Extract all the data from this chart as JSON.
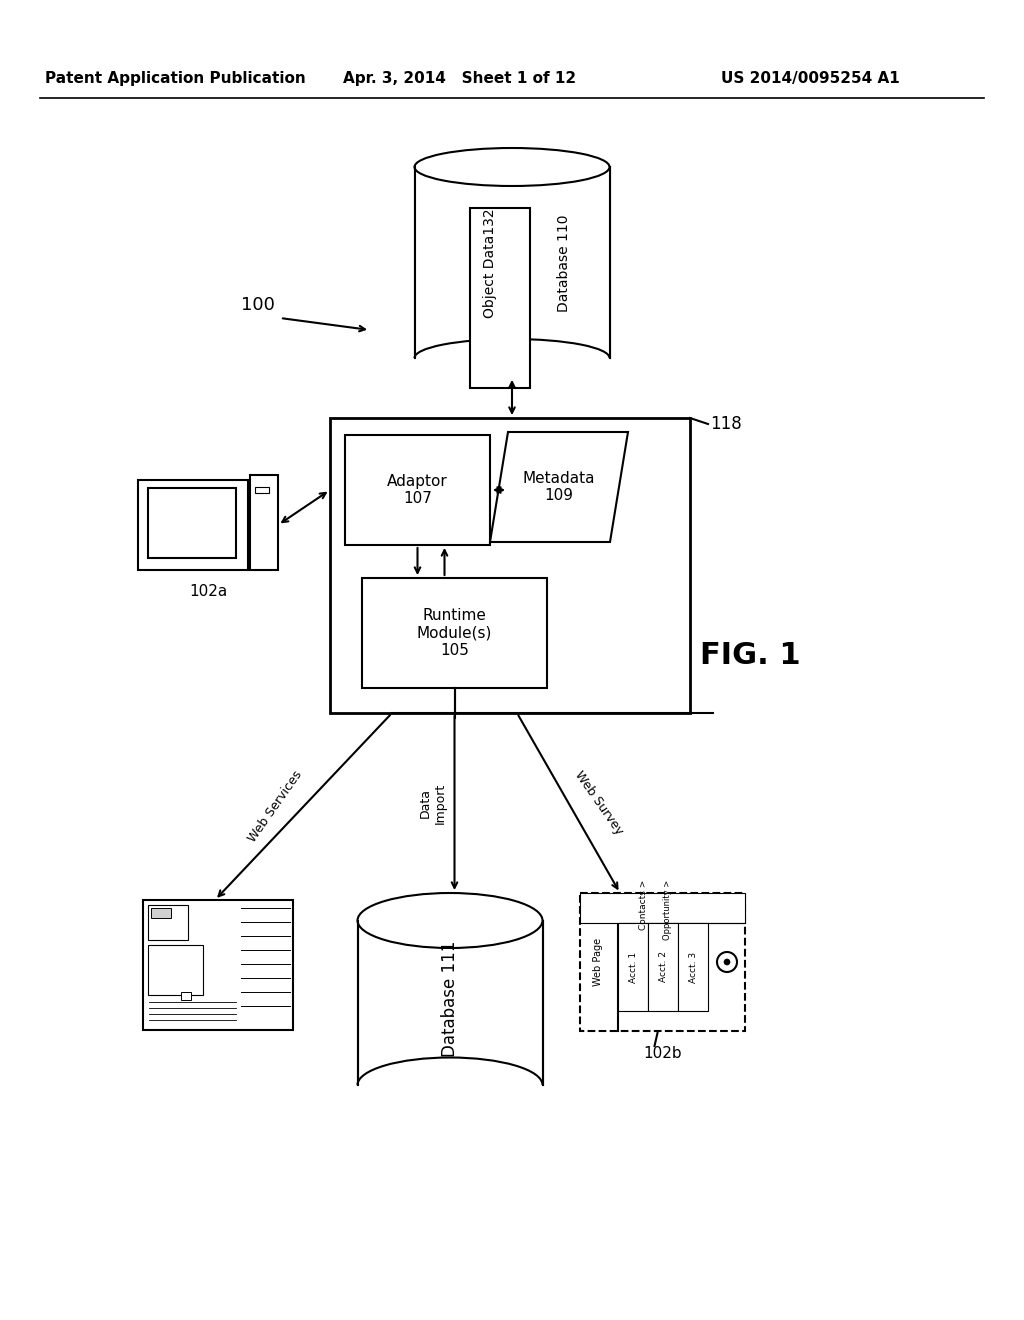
{
  "header_left": "Patent Application Publication",
  "header_center": "Apr. 3, 2014   Sheet 1 of 12",
  "header_right": "US 2014/0095254 A1",
  "fig_label": "FIG. 1",
  "label_100": "100",
  "label_118": "118",
  "label_102a": "102a",
  "label_102b": "102b",
  "label_db110": "Database 110",
  "label_objdata": "Object Data132",
  "label_db111": "Database 111",
  "label_adaptor": "Adaptor\n107",
  "label_metadata": "Metadata\n109",
  "label_runtime": "Runtime\nModule(s)\n105",
  "label_web_services": "Web Services",
  "label_data_import": "Data\nImport",
  "label_web_survey": "Web Survey",
  "bg_color": "#ffffff",
  "line_color": "#000000"
}
